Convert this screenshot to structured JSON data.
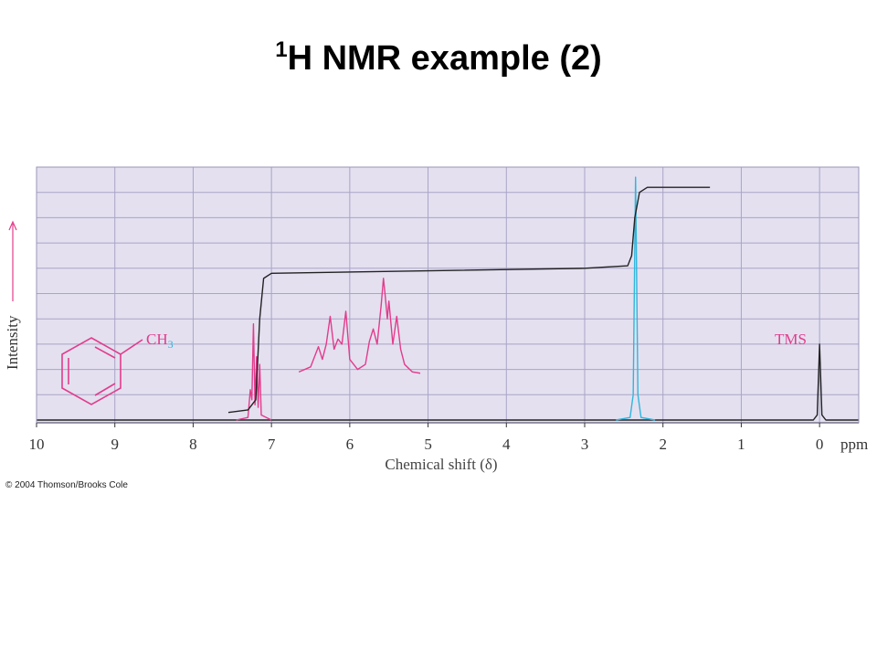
{
  "chart_data": {
    "type": "line",
    "title_sup": "1",
    "title": "H NMR example (2)",
    "xlabel": "Chemical shift (δ)",
    "xunit": "ppm",
    "ylabel": "Intensity",
    "molecule_label": "CH",
    "molecule_label_sub": "3",
    "annotation": "TMS",
    "copyright": "© 2004 Thomson/Brooks Cole",
    "xlim": [
      10,
      -0.5
    ],
    "xticks": [
      10,
      9,
      8,
      7,
      6,
      5,
      4,
      3,
      2,
      1,
      0
    ],
    "ylim": [
      0,
      100
    ],
    "grid": true,
    "series": [
      {
        "color": "#222222",
        "x": [
          10,
          0.08,
          0.03,
          0,
          -0.03,
          -0.08,
          -0.5
        ],
        "values": [
          0,
          0,
          2,
          30,
          2,
          0,
          0
        ]
      },
      {
        "color": "#2fb6dc",
        "x": [
          2.6,
          2.42,
          2.38,
          2.35,
          2.32,
          2.28,
          2.1
        ],
        "values": [
          0,
          1,
          10,
          96,
          10,
          1,
          0
        ]
      },
      {
        "color": "#e23c8c",
        "x": [
          7.45,
          7.3,
          7.27,
          7.25,
          7.23,
          7.21,
          7.19,
          7.17,
          7.15,
          7.13,
          7.0
        ],
        "values": [
          0,
          1,
          12,
          8,
          38,
          6,
          25,
          5,
          22,
          2,
          0
        ]
      },
      {
        "color": "#222222",
        "x": [
          7.55,
          7.3,
          7.2,
          7.15,
          7.1,
          7.0,
          5,
          3,
          2.45,
          2.4,
          2.36,
          2.3,
          2.2,
          1.4
        ],
        "values": [
          3,
          4,
          8,
          40,
          56,
          58,
          59,
          60,
          61,
          65,
          80,
          90,
          92,
          92
        ]
      },
      {
        "color": "#e23c8c",
        "x": [
          6.65,
          6.5,
          6.45,
          6.4,
          6.35,
          6.3,
          6.25,
          6.2,
          6.15,
          6.1,
          6.05,
          6.0,
          5.9,
          5.8,
          5.75,
          5.7,
          5.65,
          5.6,
          5.57,
          5.55,
          5.52,
          5.5,
          5.45,
          5.4,
          5.35,
          5.3,
          5.2,
          5.1
        ],
        "values": [
          19,
          21,
          25,
          29,
          24,
          30,
          41,
          28,
          32,
          30,
          43,
          24,
          20,
          22,
          31,
          36,
          30,
          45,
          56,
          50,
          40,
          47,
          30,
          41,
          28,
          22,
          19,
          18.5
        ]
      }
    ]
  }
}
